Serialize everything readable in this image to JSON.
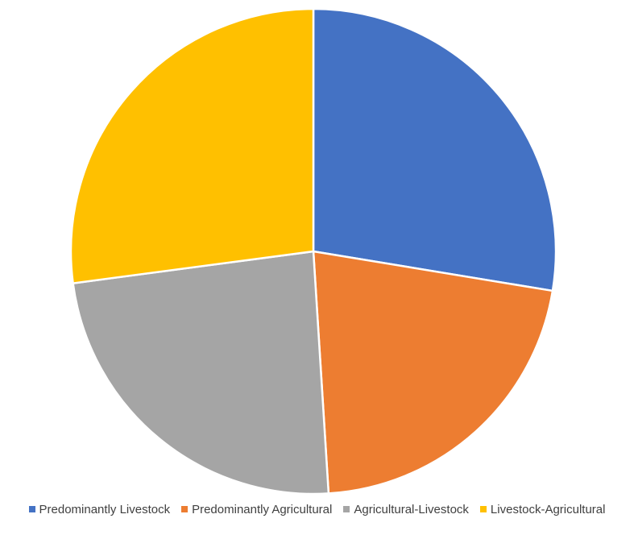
{
  "chart_data": {
    "type": "pie",
    "categories": [
      "Predominantly Livestock",
      "Predominantly Agricultural",
      "Agricultural-Livestock",
      "Livestock-Agricultural"
    ],
    "values": [
      27.6,
      21.4,
      23.9,
      27.1
    ],
    "colors": [
      "#4472C4",
      "#ED7D31",
      "#A5A5A5",
      "#FFC000"
    ],
    "legend_position": "bottom",
    "start_angle": "12 o'clock",
    "direction": "clockwise"
  }
}
